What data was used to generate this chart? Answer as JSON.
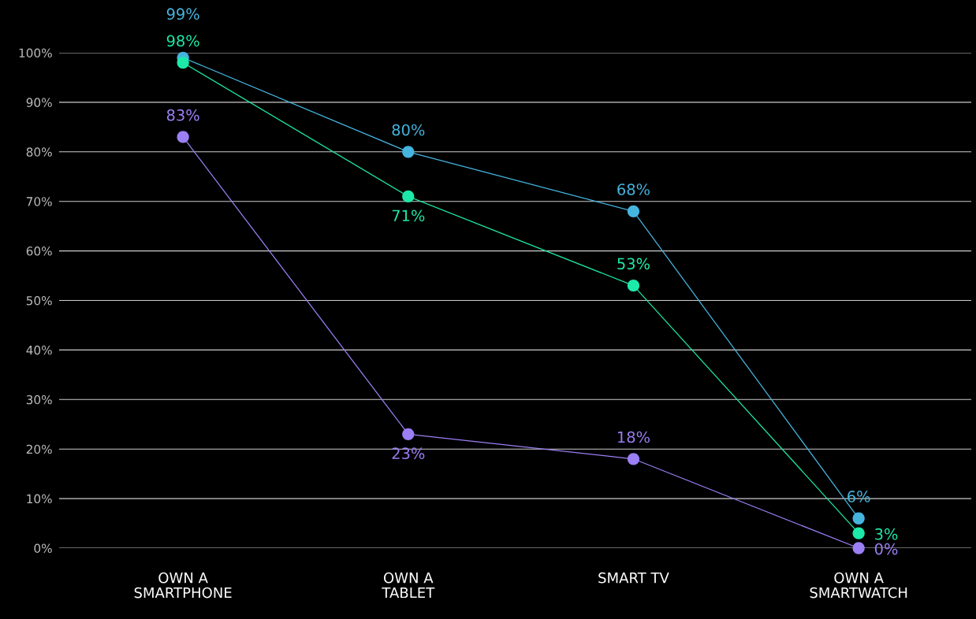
{
  "chart_data": {
    "type": "line",
    "categories": [
      "OWN A\nSMARTPHONE",
      "OWN A\nTABLET",
      "SMART TV",
      "OWN A\nSMARTWATCH"
    ],
    "series": [
      {
        "color": "#45b5e0",
        "values": [
          99,
          80,
          68,
          6
        ],
        "value_labels": [
          "99%",
          "80%",
          "68%",
          "6%"
        ]
      },
      {
        "color": "#1de9a8",
        "values": [
          98,
          71,
          53,
          3
        ],
        "value_labels": [
          "98%",
          "71%",
          "53%",
          "3%"
        ]
      },
      {
        "color": "#9b7ff5",
        "values": [
          83,
          23,
          18,
          0
        ],
        "value_labels": [
          "83%",
          "23%",
          "18%",
          "0%"
        ]
      }
    ],
    "ylim": [
      0,
      100
    ],
    "yticks": [
      {
        "value": 0,
        "label": "0%"
      },
      {
        "value": 10,
        "label": "10%"
      },
      {
        "value": 20,
        "label": "20%"
      },
      {
        "value": 30,
        "label": "30%"
      },
      {
        "value": 40,
        "label": "40%"
      },
      {
        "value": 50,
        "label": "50%"
      },
      {
        "value": 60,
        "label": "60%"
      },
      {
        "value": 70,
        "label": "70%"
      },
      {
        "value": 80,
        "label": "80%"
      },
      {
        "value": 90,
        "label": "90%"
      },
      {
        "value": 100,
        "label": "100%"
      }
    ],
    "grid": "y",
    "marker": "circle",
    "line_style": "solid",
    "legend": false
  }
}
